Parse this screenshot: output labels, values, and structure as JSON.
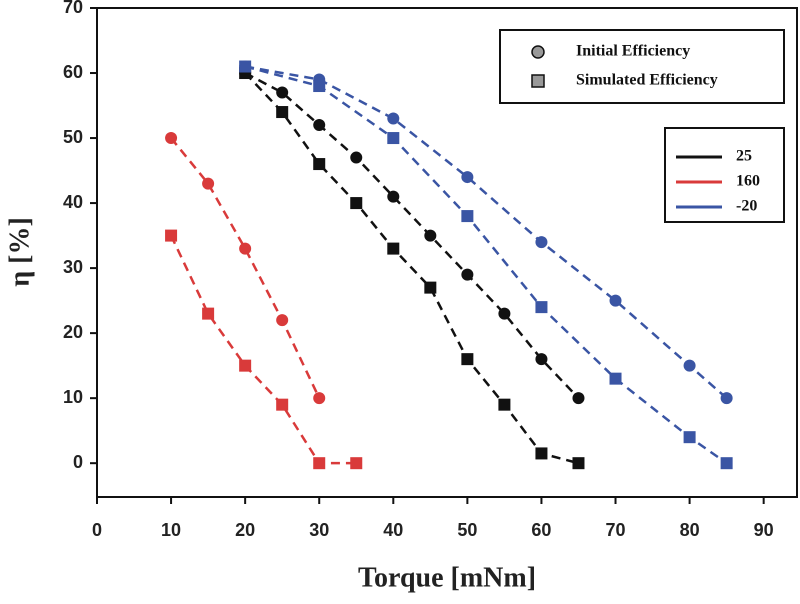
{
  "chart_data": {
    "type": "line",
    "x_label": "Torque [mNm]",
    "y_label": "η [%]",
    "xlim": [
      0,
      94.5
    ],
    "ylim": [
      -5.2,
      70
    ],
    "xticks": [
      0,
      10,
      20,
      30,
      40,
      50,
      60,
      70,
      80,
      90
    ],
    "yticks": [
      0,
      10,
      20,
      30,
      40,
      50,
      60,
      70
    ],
    "kinds": [
      {
        "name": "Initial Efficiency",
        "marker": "circle"
      },
      {
        "name": "Simulated Efficiency",
        "marker": "square"
      }
    ],
    "series": [
      {
        "name": "25",
        "color": "#111111",
        "lines": [
          {
            "kind": 0,
            "x": [
              20,
              25,
              30,
              35,
              40,
              45,
              50,
              55,
              60,
              65
            ],
            "values": [
              60,
              57,
              52,
              47,
              41,
              35,
              29,
              23,
              16,
              10
            ]
          },
          {
            "kind": 1,
            "x": [
              20,
              25,
              30,
              35,
              40,
              45,
              50,
              55,
              60,
              65
            ],
            "values": [
              60,
              54,
              46,
              40,
              33,
              27,
              16,
              9,
              1.5,
              0
            ]
          }
        ]
      },
      {
        "name": "160",
        "color": "#d93a3a",
        "lines": [
          {
            "kind": 0,
            "x": [
              10,
              15,
              20,
              25,
              30
            ],
            "values": [
              50,
              43,
              33,
              22,
              10
            ]
          },
          {
            "kind": 1,
            "x": [
              10,
              15,
              20,
              25,
              30,
              35
            ],
            "values": [
              35,
              23,
              15,
              9,
              0,
              0
            ]
          }
        ]
      },
      {
        "name": "-20",
        "color": "#3a55a4",
        "lines": [
          {
            "kind": 0,
            "x": [
              20,
              30,
              40,
              50,
              60,
              70,
              80,
              85
            ],
            "values": [
              61,
              59,
              53,
              44,
              34,
              25,
              15,
              10
            ]
          },
          {
            "kind": 1,
            "x": [
              20,
              30,
              40,
              50,
              60,
              70,
              80,
              85
            ],
            "values": [
              61,
              58,
              50,
              38,
              24,
              13,
              4,
              0
            ]
          }
        ]
      }
    ]
  }
}
